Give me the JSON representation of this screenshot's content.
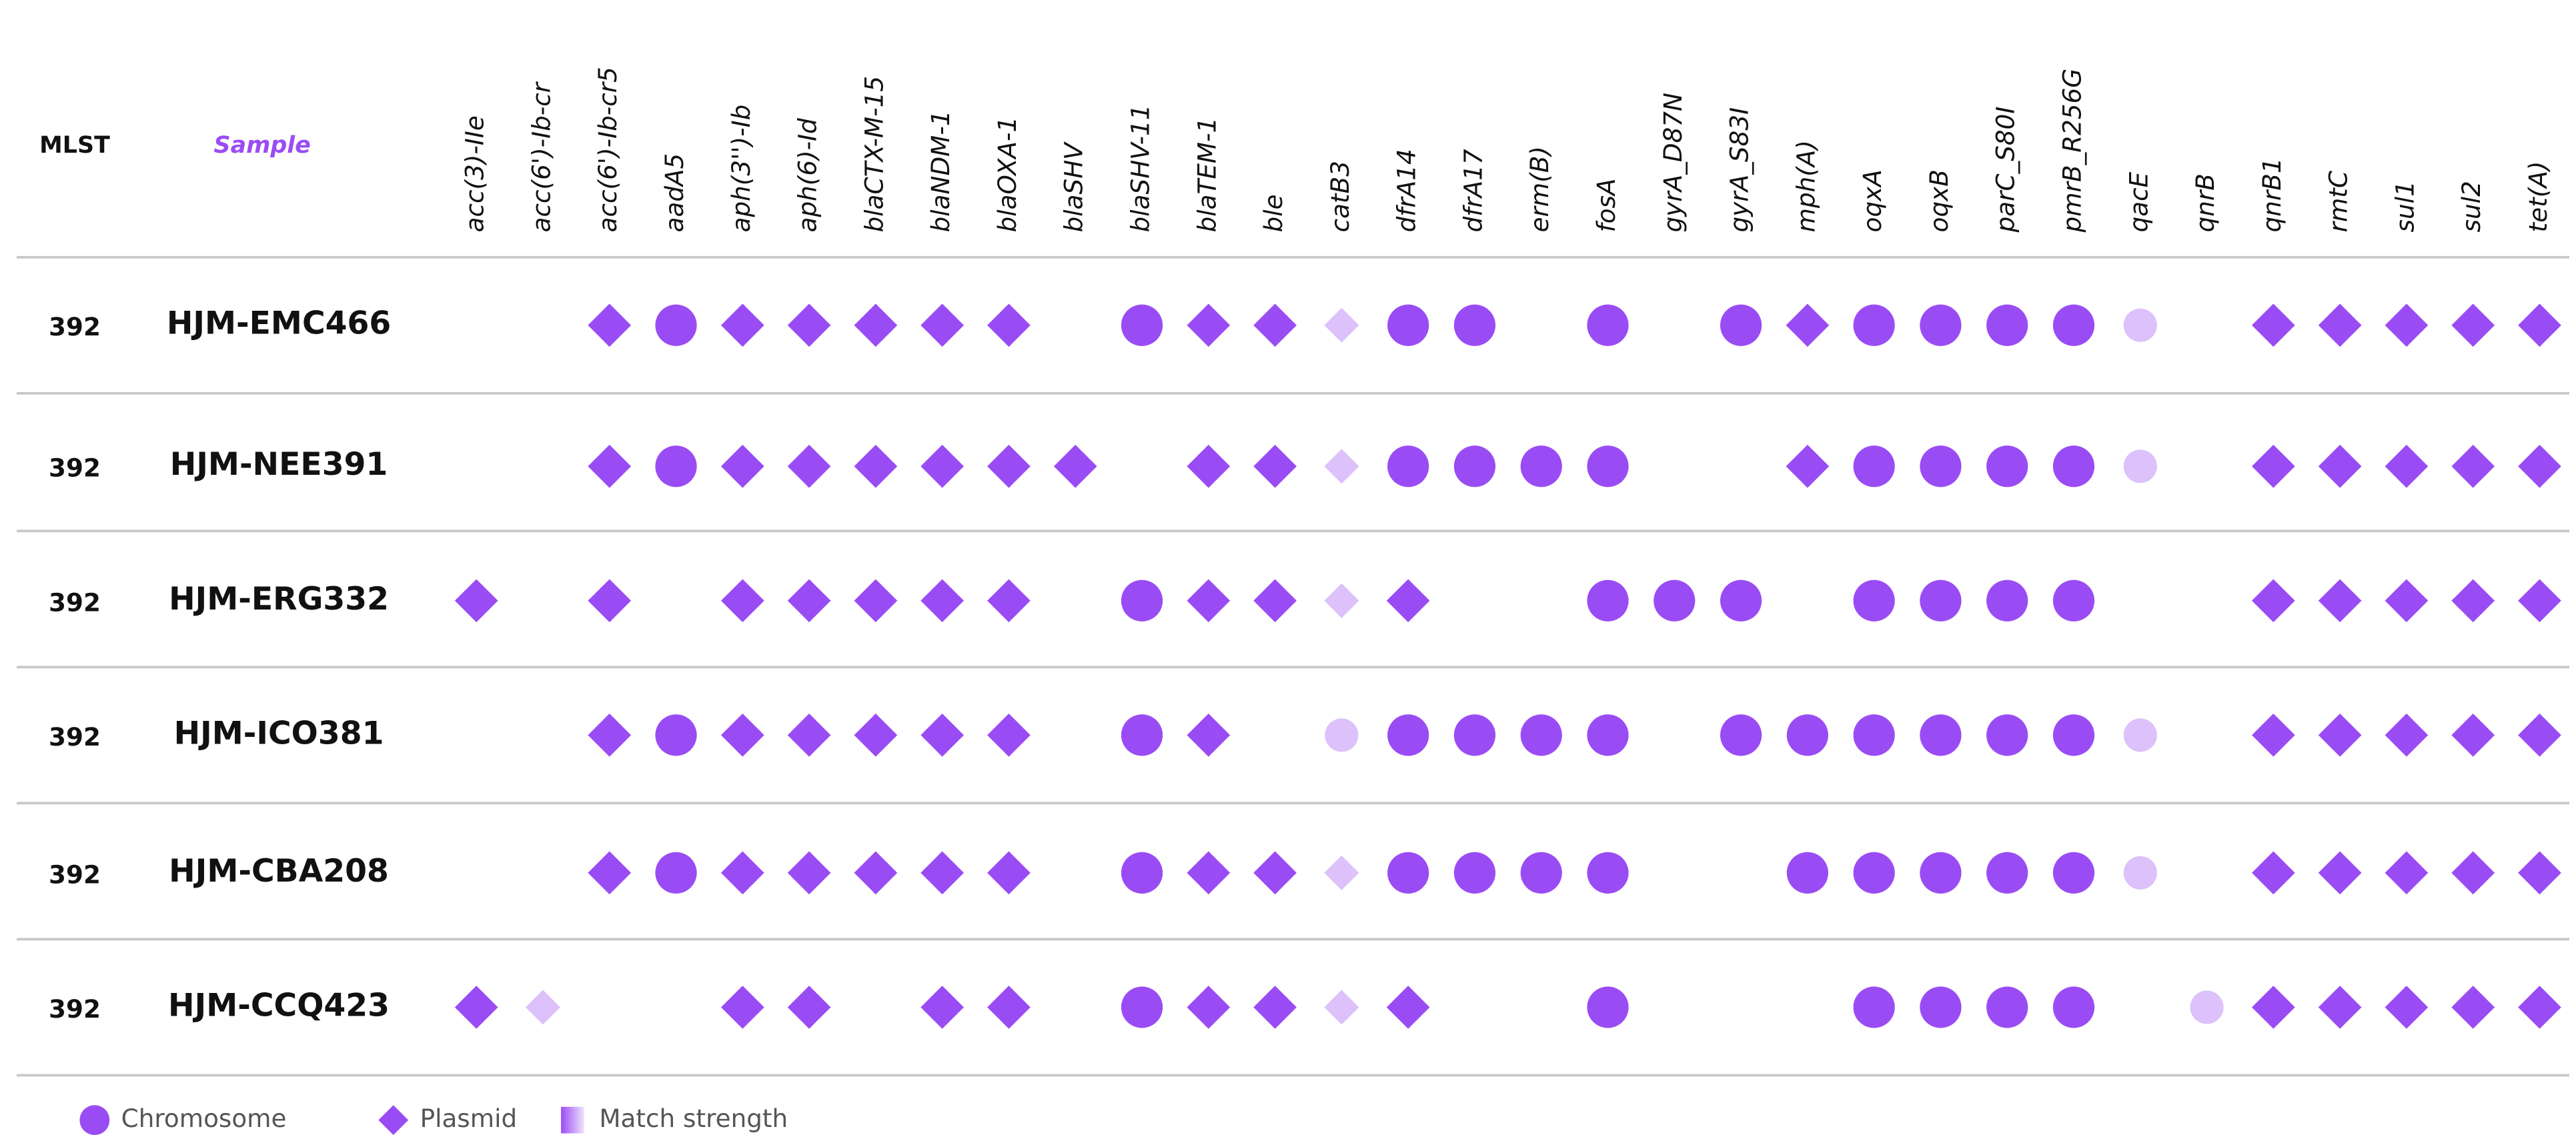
{
  "header": {
    "mlst": "MLST",
    "sample": "Sample"
  },
  "color": "#9a4cf4",
  "genes": [
    "acc(3)-IIe",
    "acc(6')-Ib-cr",
    "acc(6')-Ib-cr5",
    "aadA5",
    "aph(3'')-Ib",
    "aph(6)-Id",
    "blaCTX-M-15",
    "blaNDM-1",
    "blaOXA-1",
    "blaSHV",
    "blaSHV-11",
    "blaTEM-1",
    "ble",
    "catB3",
    "dfrA14",
    "dfrA17",
    "erm(B)",
    "fosA",
    "gyrA_D87N",
    "gyrA_S83I",
    "mph(A)",
    "oqxA",
    "oqxB",
    "parC_S80I",
    "pmrB_R256G",
    "qacE",
    "qnrB",
    "qnrB1",
    "rmtC",
    "sul1",
    "sul2",
    "tet(A)"
  ],
  "legend": [
    {
      "label": "Chromosome",
      "shape": "circle"
    },
    {
      "label": "Plasmid",
      "shape": "diamond"
    },
    {
      "label": "Match strength",
      "shape": "gradient"
    }
  ],
  "rows": [
    {
      "mlst": "392",
      "sample": "HJM-EMC466",
      "cells": [
        null,
        null,
        [
          1,
          1
        ],
        [
          0,
          1
        ],
        [
          1,
          1
        ],
        [
          1,
          1
        ],
        [
          1,
          1
        ],
        [
          1,
          1
        ],
        [
          1,
          1
        ],
        null,
        [
          0,
          1
        ],
        [
          1,
          1
        ],
        [
          1,
          1
        ],
        [
          1,
          0.35
        ],
        [
          0,
          1
        ],
        [
          0,
          1
        ],
        null,
        [
          0,
          1
        ],
        null,
        [
          0,
          1
        ],
        [
          1,
          1
        ],
        [
          0,
          1
        ],
        [
          0,
          1
        ],
        [
          0,
          1
        ],
        [
          0,
          1
        ],
        [
          0,
          0.35
        ],
        null,
        [
          1,
          1
        ],
        [
          1,
          1
        ],
        [
          1,
          1
        ],
        [
          1,
          1
        ],
        [
          1,
          1
        ]
      ]
    },
    {
      "mlst": "392",
      "sample": "HJM-NEE391",
      "cells": [
        null,
        null,
        [
          1,
          1
        ],
        [
          0,
          1
        ],
        [
          1,
          1
        ],
        [
          1,
          1
        ],
        [
          1,
          1
        ],
        [
          1,
          1
        ],
        [
          1,
          1
        ],
        [
          1,
          1
        ],
        null,
        [
          1,
          1
        ],
        [
          1,
          1
        ],
        [
          1,
          0.35
        ],
        [
          0,
          1
        ],
        [
          0,
          1
        ],
        [
          0,
          1
        ],
        [
          0,
          1
        ],
        null,
        null,
        [
          1,
          1
        ],
        [
          0,
          1
        ],
        [
          0,
          1
        ],
        [
          0,
          1
        ],
        [
          0,
          1
        ],
        [
          0,
          0.35
        ],
        null,
        [
          1,
          1
        ],
        [
          1,
          1
        ],
        [
          1,
          1
        ],
        [
          1,
          1
        ],
        [
          1,
          1
        ]
      ]
    },
    {
      "mlst": "392",
      "sample": "HJM-ERG332",
      "cells": [
        [
          1,
          1
        ],
        null,
        [
          1,
          1
        ],
        null,
        [
          1,
          1
        ],
        [
          1,
          1
        ],
        [
          1,
          1
        ],
        [
          1,
          1
        ],
        [
          1,
          1
        ],
        null,
        [
          0,
          1
        ],
        [
          1,
          1
        ],
        [
          1,
          1
        ],
        [
          1,
          0.35
        ],
        [
          1,
          1
        ],
        null,
        null,
        [
          0,
          1
        ],
        [
          0,
          1
        ],
        [
          0,
          1
        ],
        null,
        [
          0,
          1
        ],
        [
          0,
          1
        ],
        [
          0,
          1
        ],
        [
          0,
          1
        ],
        null,
        null,
        [
          1,
          1
        ],
        [
          1,
          1
        ],
        [
          1,
          1
        ],
        [
          1,
          1
        ],
        [
          1,
          1
        ]
      ]
    },
    {
      "mlst": "392",
      "sample": "HJM-ICO381",
      "cells": [
        null,
        null,
        [
          1,
          1
        ],
        [
          0,
          1
        ],
        [
          1,
          1
        ],
        [
          1,
          1
        ],
        [
          1,
          1
        ],
        [
          1,
          1
        ],
        [
          1,
          1
        ],
        null,
        [
          0,
          1
        ],
        [
          1,
          1
        ],
        null,
        [
          0,
          0.35
        ],
        [
          0,
          1
        ],
        [
          0,
          1
        ],
        [
          0,
          1
        ],
        [
          0,
          1
        ],
        null,
        [
          0,
          1
        ],
        [
          0,
          1
        ],
        [
          0,
          1
        ],
        [
          0,
          1
        ],
        [
          0,
          1
        ],
        [
          0,
          1
        ],
        [
          0,
          0.35
        ],
        null,
        [
          1,
          1
        ],
        [
          1,
          1
        ],
        [
          1,
          1
        ],
        [
          1,
          1
        ],
        [
          1,
          1
        ]
      ]
    },
    {
      "mlst": "392",
      "sample": "HJM-CBA208",
      "cells": [
        null,
        null,
        [
          1,
          1
        ],
        [
          0,
          1
        ],
        [
          1,
          1
        ],
        [
          1,
          1
        ],
        [
          1,
          1
        ],
        [
          1,
          1
        ],
        [
          1,
          1
        ],
        null,
        [
          0,
          1
        ],
        [
          1,
          1
        ],
        [
          1,
          1
        ],
        [
          1,
          0.35
        ],
        [
          0,
          1
        ],
        [
          0,
          1
        ],
        [
          0,
          1
        ],
        [
          0,
          1
        ],
        null,
        null,
        [
          0,
          1
        ],
        [
          0,
          1
        ],
        [
          0,
          1
        ],
        [
          0,
          1
        ],
        [
          0,
          1
        ],
        [
          0,
          0.35
        ],
        null,
        [
          1,
          1
        ],
        [
          1,
          1
        ],
        [
          1,
          1
        ],
        [
          1,
          1
        ],
        [
          1,
          1
        ]
      ]
    },
    {
      "mlst": "392",
      "sample": "HJM-CCQ423",
      "cells": [
        [
          1,
          1
        ],
        [
          1,
          0.35
        ],
        null,
        null,
        [
          1,
          1
        ],
        [
          1,
          1
        ],
        null,
        [
          1,
          1
        ],
        [
          1,
          1
        ],
        null,
        [
          0,
          1
        ],
        [
          1,
          1
        ],
        [
          1,
          1
        ],
        [
          1,
          0.35
        ],
        [
          1,
          1
        ],
        null,
        null,
        [
          0,
          1
        ],
        null,
        null,
        null,
        [
          0,
          1
        ],
        [
          0,
          1
        ],
        [
          0,
          1
        ],
        [
          0,
          1
        ],
        null,
        [
          0,
          0.35
        ],
        [
          1,
          1
        ],
        [
          1,
          1
        ],
        [
          1,
          1
        ],
        [
          1,
          1
        ],
        [
          1,
          1
        ]
      ]
    }
  ]
}
